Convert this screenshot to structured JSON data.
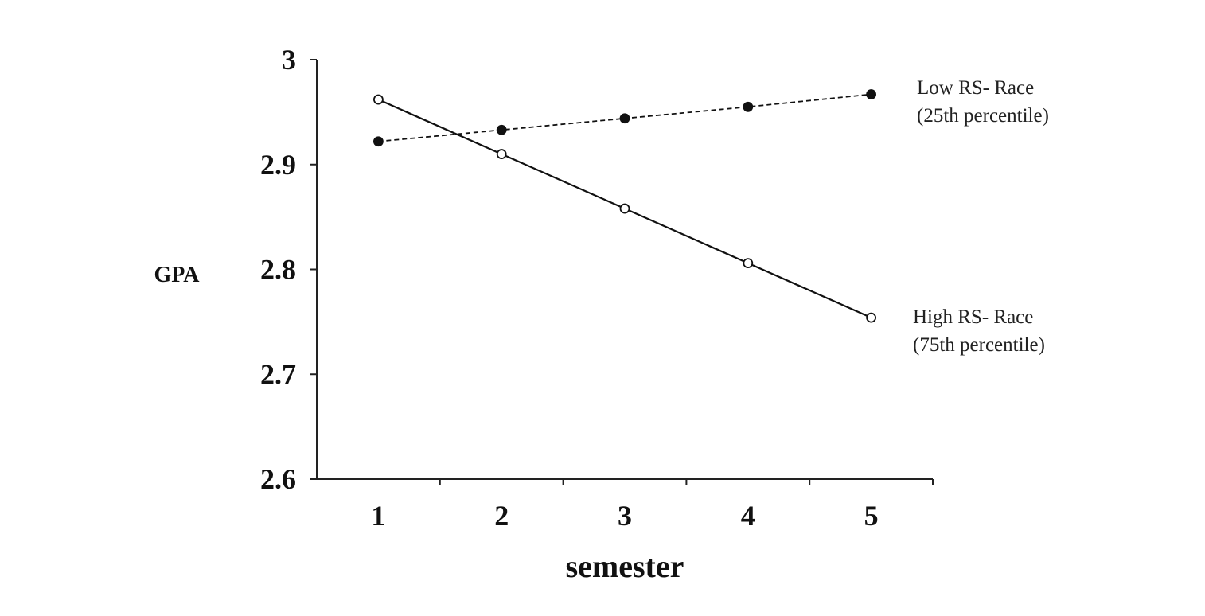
{
  "chart_data": {
    "type": "line",
    "xlabel": "semester",
    "ylabel": "GPA",
    "x": [
      1,
      2,
      3,
      4,
      5
    ],
    "xlim": [
      0.5,
      5.5
    ],
    "ylim": [
      2.6,
      3.0
    ],
    "x_ticks": [
      "1",
      "2",
      "3",
      "4",
      "5"
    ],
    "y_ticks": [
      "2.6",
      "2.7",
      "2.8",
      "2.9",
      "3"
    ],
    "grid": false,
    "legend": "none",
    "series": [
      {
        "name_lines": [
          "Low RS- Race",
          "(25th percentile)"
        ],
        "values": [
          2.922,
          2.933,
          2.944,
          2.955,
          2.967
        ],
        "line_style": "dashed",
        "marker": "filled-circle",
        "color": "#111111"
      },
      {
        "name_lines": [
          "High RS- Race",
          "(75th percentile)"
        ],
        "values": [
          2.962,
          2.91,
          2.858,
          2.806,
          2.754
        ],
        "line_style": "solid",
        "marker": "open-circle",
        "color": "#111111"
      }
    ]
  }
}
